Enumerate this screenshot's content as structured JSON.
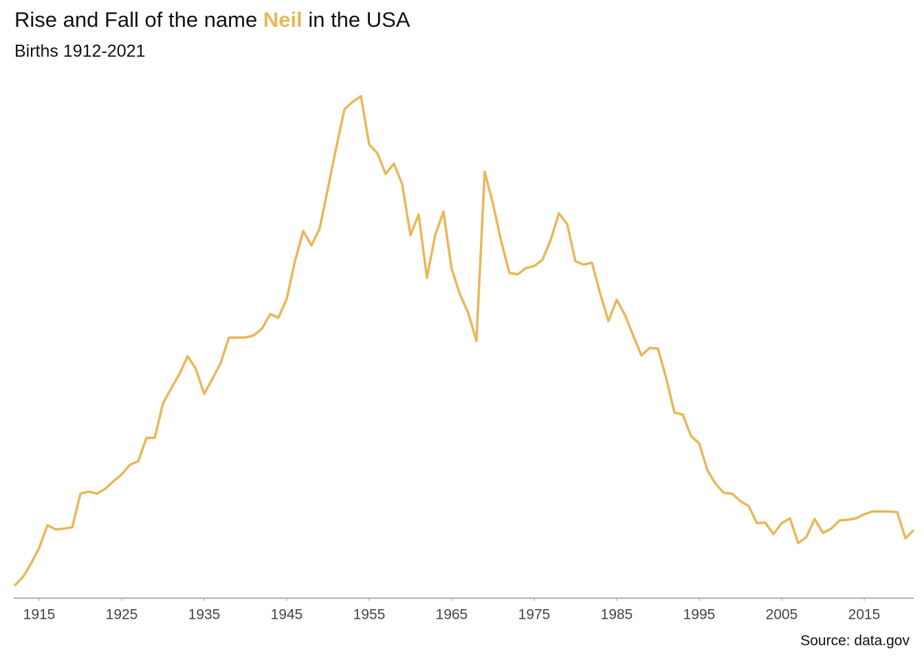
{
  "chart_data": {
    "type": "line",
    "title": [
      "Rise and Fall of the name ",
      "Neil",
      " in the USA"
    ],
    "subtitle": "Births 1912-2021",
    "source": "Source: data.gov",
    "x": [
      1912,
      1913,
      1914,
      1915,
      1916,
      1917,
      1918,
      1919,
      1920,
      1921,
      1922,
      1923,
      1924,
      1925,
      1926,
      1927,
      1928,
      1929,
      1930,
      1931,
      1932,
      1933,
      1934,
      1935,
      1936,
      1937,
      1938,
      1939,
      1940,
      1941,
      1942,
      1943,
      1944,
      1945,
      1946,
      1947,
      1948,
      1949,
      1950,
      1951,
      1952,
      1953,
      1954,
      1955,
      1956,
      1957,
      1958,
      1959,
      1960,
      1961,
      1962,
      1963,
      1964,
      1965,
      1966,
      1967,
      1968,
      1969,
      1970,
      1971,
      1972,
      1973,
      1974,
      1975,
      1976,
      1977,
      1978,
      1979,
      1980,
      1981,
      1982,
      1983,
      1984,
      1985,
      1986,
      1987,
      1988,
      1989,
      1990,
      1991,
      1992,
      1993,
      1994,
      1995,
      1996,
      1997,
      1998,
      1999,
      2000,
      2001,
      2002,
      2003,
      2004,
      2005,
      2006,
      2007,
      2008,
      2009,
      2010,
      2011,
      2012,
      2013,
      2014,
      2015,
      2016,
      2017,
      2018,
      2019,
      2020,
      2021
    ],
    "series": [
      {
        "name": "Neil",
        "color": "#e8b75a",
        "values": [
          180,
          300,
          500,
          730,
          1060,
          1000,
          1010,
          1030,
          1520,
          1550,
          1520,
          1590,
          1700,
          1800,
          1940,
          1990,
          2330,
          2330,
          2830,
          3050,
          3260,
          3520,
          3330,
          2970,
          3190,
          3420,
          3790,
          3790,
          3790,
          3820,
          3920,
          4130,
          4080,
          4350,
          4900,
          5340,
          5130,
          5380,
          5960,
          6550,
          7110,
          7220,
          7300,
          6600,
          6470,
          6170,
          6320,
          6020,
          5280,
          5580,
          4660,
          5280,
          5620,
          4790,
          4420,
          4150,
          3740,
          6200,
          5740,
          5190,
          4730,
          4710,
          4800,
          4830,
          4920,
          5210,
          5600,
          5440,
          4900,
          4850,
          4880,
          4430,
          4030,
          4340,
          4120,
          3820,
          3530,
          3640,
          3630,
          3200,
          2700,
          2670,
          2360,
          2250,
          1860,
          1660,
          1530,
          1520,
          1410,
          1340,
          1090,
          1100,
          930,
          1090,
          1160,
          800,
          890,
          1150,
          950,
          1010,
          1130,
          1140,
          1160,
          1220,
          1260,
          1260,
          1260,
          1250,
          870,
          990
        ]
      }
    ],
    "xlim": [
      1912,
      2021
    ],
    "xticks": [
      1915,
      1925,
      1935,
      1945,
      1955,
      1965,
      1975,
      1985,
      1995,
      2005,
      2015
    ],
    "ylim": [
      0,
      7500
    ],
    "grid": false
  }
}
